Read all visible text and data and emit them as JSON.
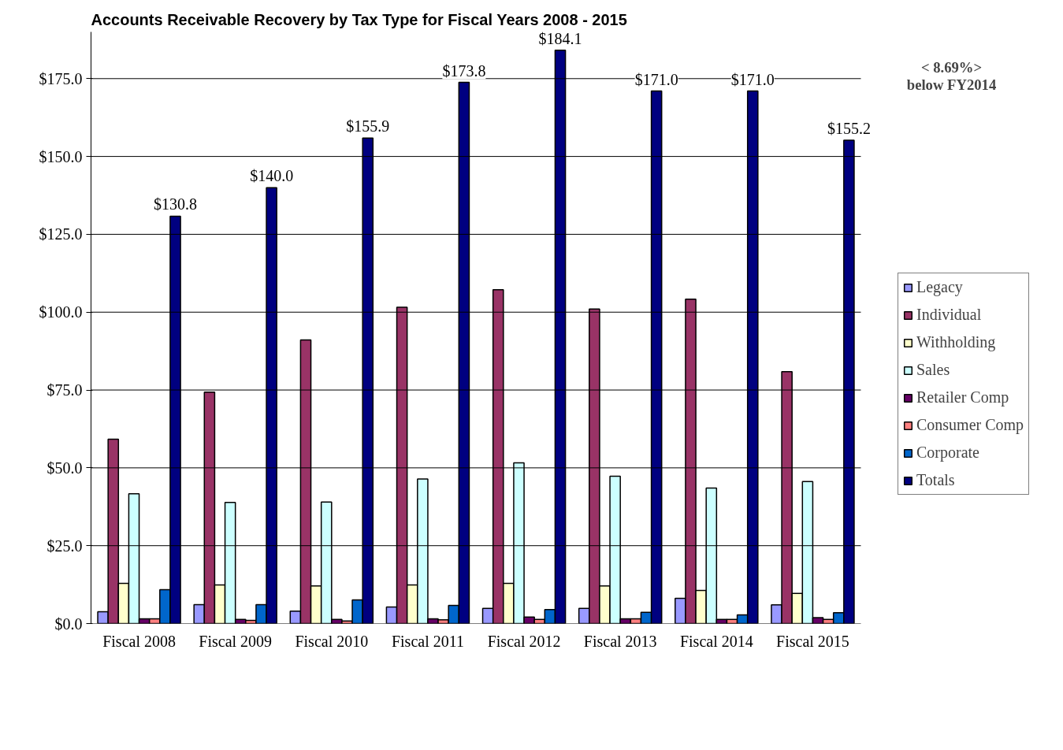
{
  "chart_data": {
    "type": "bar",
    "title": "Accounts Receivable Recovery by Tax Type for Fiscal Years 2008 - 2015",
    "categories": [
      "Fiscal 2008",
      "Fiscal 2009",
      "Fiscal 2010",
      "Fiscal 2011",
      "Fiscal 2012",
      "Fiscal 2013",
      "Fiscal 2014",
      "Fiscal 2015"
    ],
    "series": [
      {
        "name": "Legacy",
        "color": "#9999ff",
        "values": [
          3.8,
          6.1,
          4.0,
          5.3,
          4.9,
          4.9,
          8.1,
          6.0
        ]
      },
      {
        "name": "Individual",
        "color": "#993366",
        "values": [
          59.2,
          74.3,
          91.1,
          101.6,
          107.2,
          101.0,
          104.2,
          80.9
        ]
      },
      {
        "name": "Withholding",
        "color": "#ffffcc",
        "values": [
          12.9,
          12.4,
          12.1,
          12.4,
          12.9,
          12.1,
          10.6,
          9.7
        ]
      },
      {
        "name": "Sales",
        "color": "#ccffff",
        "values": [
          41.7,
          38.9,
          39.0,
          46.4,
          51.6,
          47.3,
          43.5,
          45.6
        ]
      },
      {
        "name": "Retailer Comp",
        "color": "#660066",
        "values": [
          1.5,
          1.3,
          1.3,
          1.5,
          2.1,
          1.5,
          1.3,
          1.9
        ]
      },
      {
        "name": "Consumer Comp",
        "color": "#ff8080",
        "values": [
          1.5,
          1.0,
          0.8,
          1.2,
          1.3,
          1.5,
          1.3,
          1.3
        ]
      },
      {
        "name": "Corporate",
        "color": "#0066cc",
        "values": [
          10.9,
          6.1,
          7.6,
          5.8,
          4.5,
          3.6,
          2.8,
          3.5
        ]
      },
      {
        "name": "Totals",
        "color": "#000080",
        "values": [
          130.8,
          140.0,
          155.9,
          173.8,
          184.1,
          171.0,
          171.0,
          155.2
        ],
        "value_labels": [
          "$130.8",
          "$140.0",
          "$155.9",
          "$173.8",
          "$184.1",
          "$171.0",
          "$171.0",
          "$155.2"
        ]
      }
    ],
    "ylim": [
      0,
      190
    ],
    "yticks": [
      {
        "value": 0,
        "label": "$0.0"
      },
      {
        "value": 25,
        "label": "$25.0"
      },
      {
        "value": 50,
        "label": "$50.0"
      },
      {
        "value": 75,
        "label": "$75.0"
      },
      {
        "value": 100,
        "label": "$100.0"
      },
      {
        "value": 125,
        "label": "$125.0"
      },
      {
        "value": 150,
        "label": "$150.0"
      },
      {
        "value": 175,
        "label": "$175.0"
      }
    ],
    "grid": "y",
    "legend": "right",
    "annotations": [
      "< 8.69%>\nbelow FY2014"
    ]
  }
}
